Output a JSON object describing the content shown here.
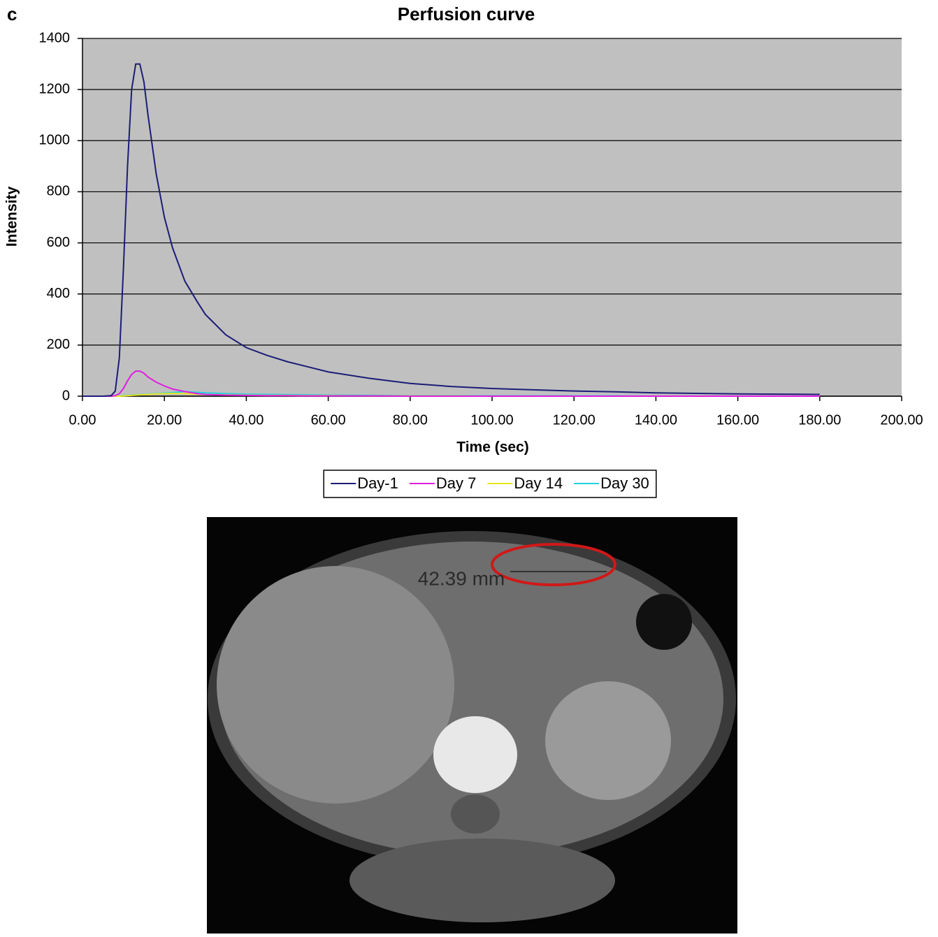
{
  "panel_label": "c",
  "image_annotation": "42.39 mm",
  "chart_data": {
    "type": "line",
    "title": "Perfusion curve",
    "x_label": "Time (sec)",
    "y_label": "Intensity",
    "x": [
      0,
      5,
      7,
      8,
      9,
      10,
      11,
      12,
      13,
      14,
      15,
      16,
      18,
      20,
      22,
      25,
      28,
      30,
      35,
      40,
      45,
      50,
      55,
      60,
      70,
      80,
      90,
      100,
      110,
      120,
      130,
      140,
      150,
      160,
      170,
      180
    ],
    "series": [
      {
        "name": "Day-1",
        "color": "#1c1c78",
        "values": [
          0,
          0,
          2,
          20,
          150,
          500,
          900,
          1200,
          1300,
          1300,
          1230,
          1100,
          870,
          700,
          580,
          450,
          370,
          320,
          240,
          190,
          160,
          135,
          115,
          95,
          70,
          50,
          38,
          30,
          25,
          20,
          17,
          13,
          11,
          9,
          8,
          7
        ]
      },
      {
        "name": "Day 7",
        "color": "#e01ee0",
        "values": [
          0,
          0,
          0,
          2,
          10,
          30,
          60,
          85,
          98,
          98,
          90,
          75,
          55,
          40,
          28,
          18,
          10,
          7,
          4,
          3,
          2,
          2,
          1,
          1,
          1,
          0,
          0,
          0,
          0,
          0,
          0,
          0,
          0,
          0,
          0,
          0
        ]
      },
      {
        "name": "Day 14",
        "color": "#e8e41e",
        "values": [
          0,
          0,
          0,
          0,
          0,
          1,
          2,
          3,
          4,
          5,
          6,
          7,
          9,
          10,
          11,
          10,
          8,
          7,
          5,
          4,
          3,
          3,
          2,
          2,
          1,
          1,
          1,
          0,
          0,
          0,
          0,
          0,
          0,
          0,
          0,
          0
        ]
      },
      {
        "name": "Day 30",
        "color": "#1ed2e0",
        "values": [
          0,
          0,
          0,
          0,
          1,
          2,
          3,
          4,
          5,
          6,
          7,
          8,
          10,
          12,
          14,
          18,
          15,
          13,
          10,
          8,
          7,
          6,
          5,
          4,
          3,
          2,
          2,
          1,
          1,
          1,
          1,
          0,
          0,
          0,
          0,
          0
        ]
      }
    ],
    "xlim": [
      0,
      200
    ],
    "ylim": [
      0,
      1400
    ],
    "xticks": [
      {
        "value": 0,
        "label": "0.00"
      },
      {
        "value": 20,
        "label": "20.00"
      },
      {
        "value": 40,
        "label": "40.00"
      },
      {
        "value": 60,
        "label": "60.00"
      },
      {
        "value": 80,
        "label": "80.00"
      },
      {
        "value": 100,
        "label": "100.00"
      },
      {
        "value": 120,
        "label": "120.00"
      },
      {
        "value": 140,
        "label": "140.00"
      },
      {
        "value": 160,
        "label": "160.00"
      },
      {
        "value": 180,
        "label": "180.00"
      },
      {
        "value": 200,
        "label": "200.00"
      }
    ],
    "yticks": [
      0,
      200,
      400,
      600,
      800,
      1000,
      1200,
      1400
    ],
    "grid": true,
    "plot_background": "#c0c0c0",
    "legend": "bottom"
  }
}
